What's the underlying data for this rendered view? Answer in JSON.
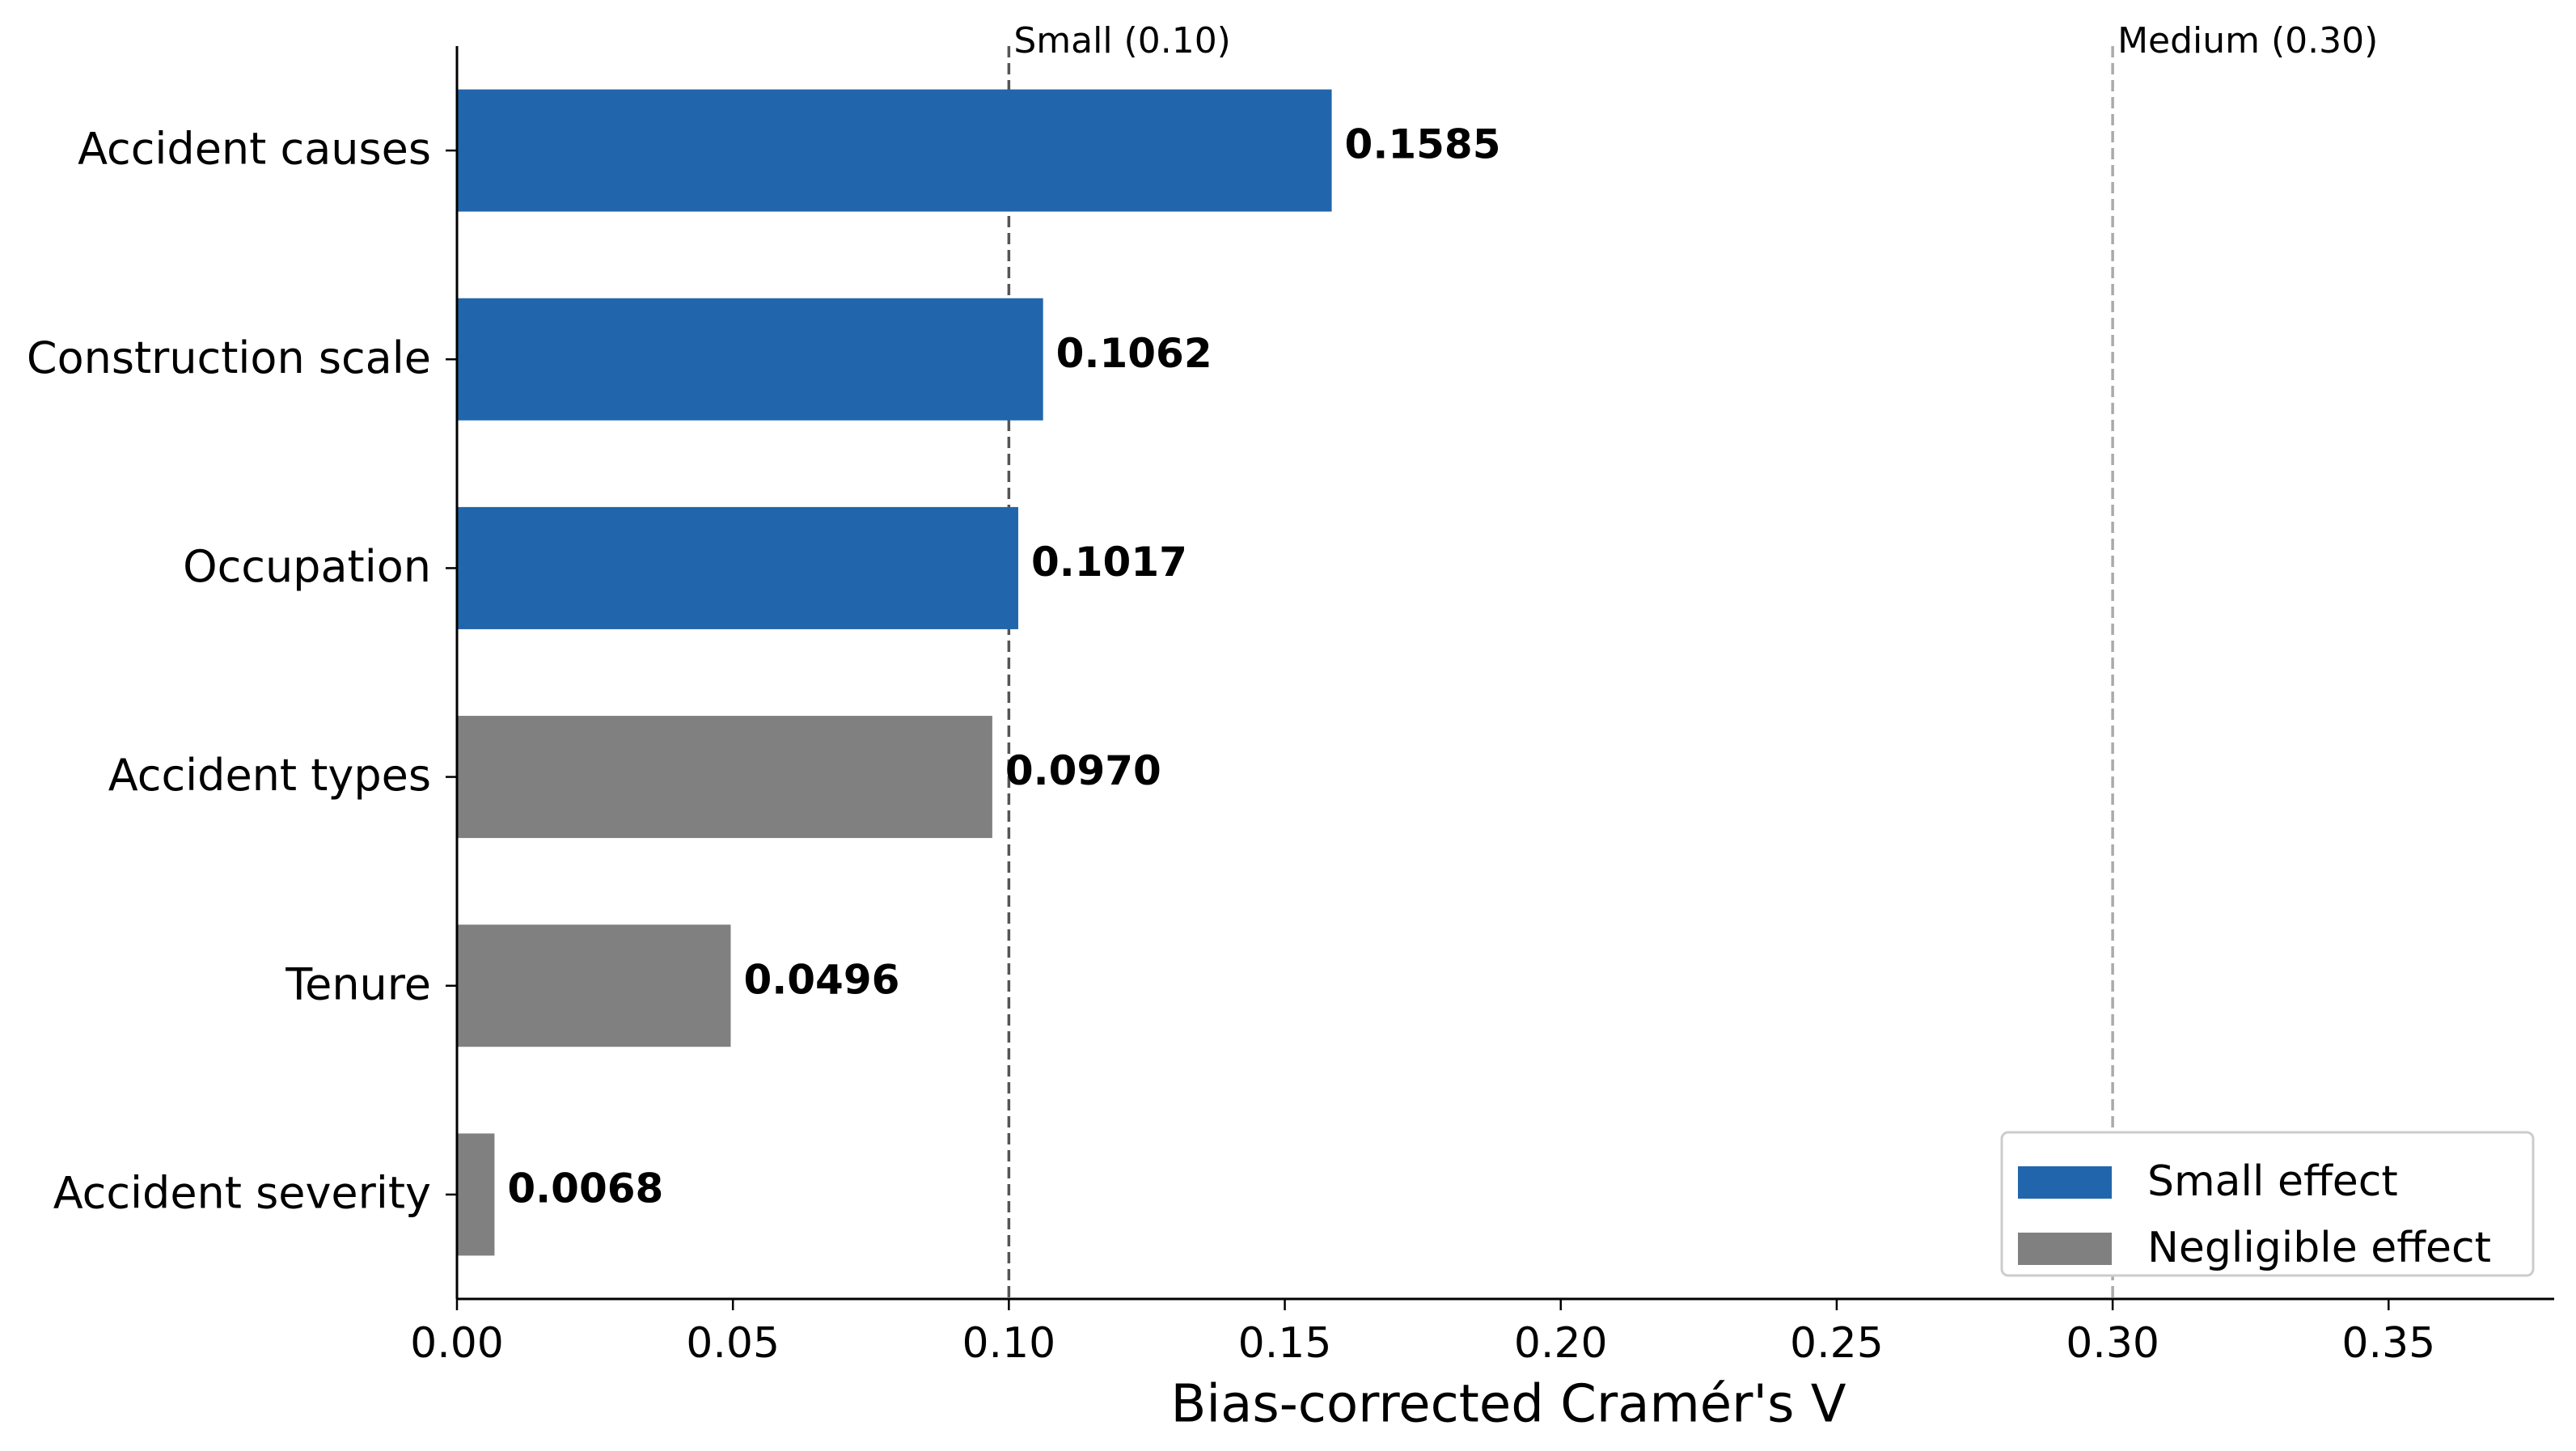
{
  "chart_data": {
    "type": "barh",
    "categories": [
      "Accident causes",
      "Construction scale",
      "Occupation",
      "Accident types",
      "Tenure",
      "Accident severity"
    ],
    "series": [
      {
        "name": "Small effect",
        "color": "#2166ac",
        "values": [
          0.1585,
          0.1062,
          0.1017,
          null,
          null,
          null
        ],
        "value_labels": [
          "0.1585",
          "0.1062",
          "0.1017",
          null,
          null,
          null
        ]
      },
      {
        "name": "Negligible effect",
        "color": "#808080",
        "values": [
          null,
          null,
          null,
          0.097,
          0.0496,
          0.0068
        ],
        "value_labels": [
          null,
          null,
          null,
          "0.0970",
          "0.0496",
          "0.0068"
        ]
      }
    ],
    "xlabel": "Bias-corrected Cramér's V",
    "xlim": [
      0,
      0.38
    ],
    "xticks": [
      {
        "value": 0,
        "label": "0.00"
      },
      {
        "value": 0.05,
        "label": "0.05"
      },
      {
        "value": 0.1,
        "label": "0.10"
      },
      {
        "value": 0.15,
        "label": "0.15"
      },
      {
        "value": 0.2,
        "label": "0.20"
      },
      {
        "value": 0.25,
        "label": "0.25"
      },
      {
        "value": 0.3,
        "label": "0.30"
      },
      {
        "value": 0.35,
        "label": "0.35"
      }
    ],
    "reference_lines": [
      {
        "value": 0.1,
        "label": "Small (0.10)",
        "color": "#555555"
      },
      {
        "value": 0.3,
        "label": "Medium (0.30)",
        "color": "#aaaaaa"
      }
    ],
    "legend": "lower right"
  }
}
